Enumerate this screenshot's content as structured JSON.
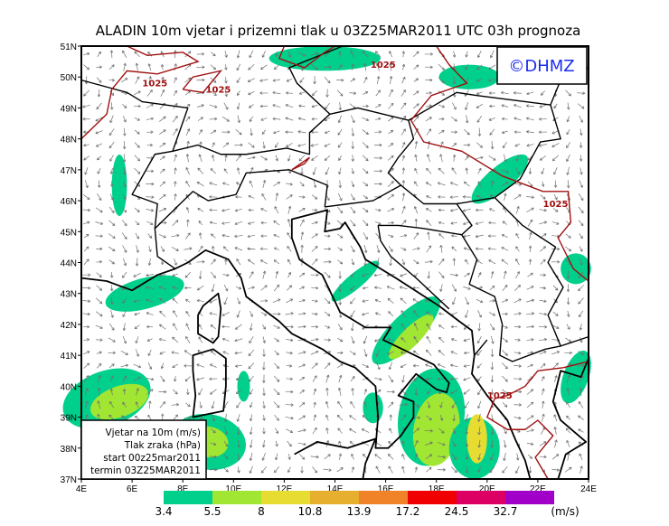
{
  "title": "ALADIN 10m vjetar i prizemni tlak u 03Z25MAR2011 UTC 03h prognoza",
  "map": {
    "lon_range": [
      4,
      24
    ],
    "lat_range": [
      37,
      51
    ],
    "lon_ticks": [
      "4E",
      "6E",
      "8E",
      "10E",
      "12E",
      "14E",
      "16E",
      "18E",
      "20E",
      "22E",
      "24E"
    ],
    "lat_ticks": [
      "37N",
      "38N",
      "39N",
      "40N",
      "41N",
      "42N",
      "43N",
      "44N",
      "45N",
      "46N",
      "47N",
      "48N",
      "49N",
      "50N",
      "51N"
    ],
    "isobar_label": "1025",
    "isobar_color": "#a01010",
    "arrow_color": "#707070",
    "coast_color": "#000000"
  },
  "logo": {
    "text": "©DHMZ",
    "color": "#1c2cf0"
  },
  "info_box": {
    "line1": "Vjetar na 10m (m/s)",
    "line2": "Tlak zraka (hPa)",
    "line3": "start 00z25mar2011",
    "line4": "termin 03Z25MAR2011"
  },
  "colorbar": {
    "unit": "(m/s)",
    "levels": [
      "3.4",
      "5.5",
      "8",
      "10.8",
      "13.9",
      "17.2",
      "24.5",
      "32.7"
    ],
    "colors": [
      "#00d08c",
      "#a0e632",
      "#e6dc32",
      "#e6af2d",
      "#f08228",
      "#f00000",
      "#dc0064",
      "#a000c8"
    ]
  }
}
